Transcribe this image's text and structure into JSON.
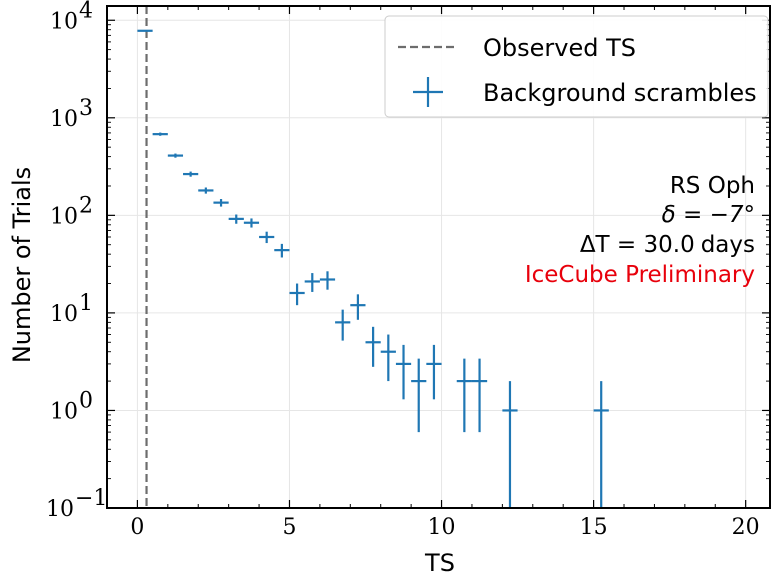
{
  "chart_data": {
    "type": "scatter",
    "xlabel": "TS",
    "ylabel": "Number of Trials",
    "xlim": [
      -1,
      20.8
    ],
    "ylim": [
      0.1,
      14000
    ],
    "yscale": "log",
    "grid": true,
    "x_ticks": [
      0,
      5,
      10,
      15,
      20
    ],
    "x_tick_labels": [
      "0",
      "5",
      "10",
      "15",
      "20"
    ],
    "y_ticks": [
      0.1,
      1,
      10,
      100,
      1000,
      10000
    ],
    "y_tick_labels": [
      {
        "base": "10",
        "exp": "−1"
      },
      {
        "base": "10",
        "exp": "0"
      },
      {
        "base": "10",
        "exp": "1"
      },
      {
        "base": "10",
        "exp": "2"
      },
      {
        "base": "10",
        "exp": "3"
      },
      {
        "base": "10",
        "exp": "4"
      }
    ],
    "legend": {
      "placement": "top-right",
      "entries": [
        {
          "label": "Observed TS",
          "style": "dashed-line",
          "color": "#6d6d6d"
        },
        {
          "label": "Background scrambles",
          "style": "errorbar",
          "color": "#1f77b4"
        }
      ]
    },
    "observed_ts": 0.3,
    "series": [
      {
        "name": "Background scrambles",
        "color": "#1f77b4",
        "bin_halfwidth": 0.25,
        "points": [
          {
            "x": 0.25,
            "y": 7800,
            "yerr": 88
          },
          {
            "x": 0.75,
            "y": 680,
            "yerr": 26
          },
          {
            "x": 1.25,
            "y": 410,
            "yerr": 20
          },
          {
            "x": 1.75,
            "y": 265,
            "yerr": 16
          },
          {
            "x": 2.25,
            "y": 180,
            "yerr": 13
          },
          {
            "x": 2.75,
            "y": 135,
            "yerr": 12
          },
          {
            "x": 3.25,
            "y": 92,
            "yerr": 10
          },
          {
            "x": 3.75,
            "y": 84,
            "yerr": 9
          },
          {
            "x": 4.25,
            "y": 60,
            "yerr": 8
          },
          {
            "x": 4.75,
            "y": 44,
            "yerr": 7
          },
          {
            "x": 5.25,
            "y": 16,
            "yerr": 4
          },
          {
            "x": 5.75,
            "y": 21,
            "yerr": 4.6
          },
          {
            "x": 6.25,
            "y": 22,
            "yerr": 4.7
          },
          {
            "x": 6.75,
            "y": 8,
            "yerr": 2.8
          },
          {
            "x": 7.25,
            "y": 12,
            "yerr": 3.5
          },
          {
            "x": 7.75,
            "y": 5,
            "yerr": 2.2
          },
          {
            "x": 8.25,
            "y": 4,
            "yerr": 2
          },
          {
            "x": 8.75,
            "y": 3,
            "yerr": 1.7
          },
          {
            "x": 9.25,
            "y": 2,
            "yerr": 1.4
          },
          {
            "x": 9.75,
            "y": 3,
            "yerr": 1.7
          },
          {
            "x": 10.75,
            "y": 2,
            "yerr": 1.4
          },
          {
            "x": 11.25,
            "y": 2,
            "yerr": 1.4
          },
          {
            "x": 12.25,
            "y": 1,
            "yerr": 1
          },
          {
            "x": 15.25,
            "y": 1,
            "yerr": 1
          }
        ]
      }
    ],
    "annotations": {
      "source": "RS Oph",
      "declination": "δ = −7°",
      "window_prefix": "ΔT = 30.0",
      "window_unit": "days",
      "label": "IceCube Preliminary",
      "label_color": "#e8000b"
    }
  }
}
